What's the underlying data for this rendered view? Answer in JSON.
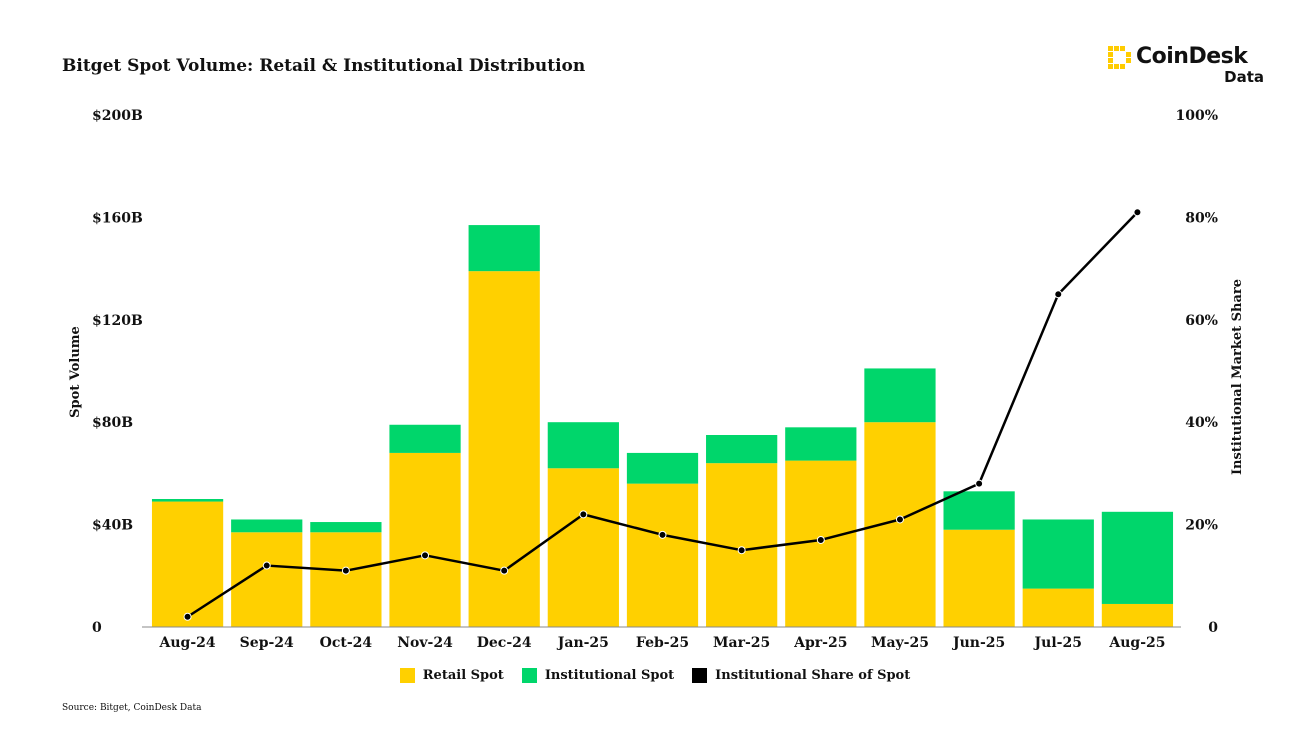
{
  "header": {
    "title": "Bitget Spot Volume: Retail & Institutional Distribution"
  },
  "brand": {
    "name": "CoinDesk",
    "sub": "Data",
    "accent": "#ffcc00"
  },
  "footer": {
    "source": "Source: Bitget, CoinDesk Data"
  },
  "chart_data": {
    "type": "bar",
    "stacked": true,
    "categories": [
      "Aug-24",
      "Sep-24",
      "Oct-24",
      "Nov-24",
      "Dec-24",
      "Jan-25",
      "Feb-25",
      "Mar-25",
      "Apr-25",
      "May-25",
      "Jun-25",
      "Jul-25",
      "Aug-25"
    ],
    "series": [
      {
        "name": "Retail Spot",
        "axis": "left",
        "color": "#ffd000",
        "values": [
          49,
          37,
          37,
          68,
          139,
          62,
          56,
          64,
          65,
          80,
          38,
          15,
          9
        ]
      },
      {
        "name": "Institutional Spot",
        "axis": "left",
        "color": "#00d66b",
        "values": [
          1,
          5,
          4,
          11,
          18,
          18,
          12,
          11,
          13,
          21,
          15,
          27,
          36
        ]
      },
      {
        "name": "Institutional Share of Spot",
        "type": "line",
        "axis": "right",
        "color": "#000000",
        "values": [
          2,
          12,
          11,
          14,
          11,
          22,
          18,
          15,
          17,
          21,
          28,
          65,
          81
        ]
      }
    ],
    "ylabel": "Spot Volume",
    "y2label": "Institutional Market Share",
    "ylim": [
      0,
      200
    ],
    "y2lim": [
      0,
      100
    ],
    "yticks": [
      "0",
      "$40B",
      "$80B",
      "$120B",
      "$160B",
      "$200B"
    ],
    "y2ticks": [
      "0",
      "20%",
      "40%",
      "60%",
      "80%",
      "100%"
    ],
    "grid": false,
    "legend_position": "bottom"
  }
}
